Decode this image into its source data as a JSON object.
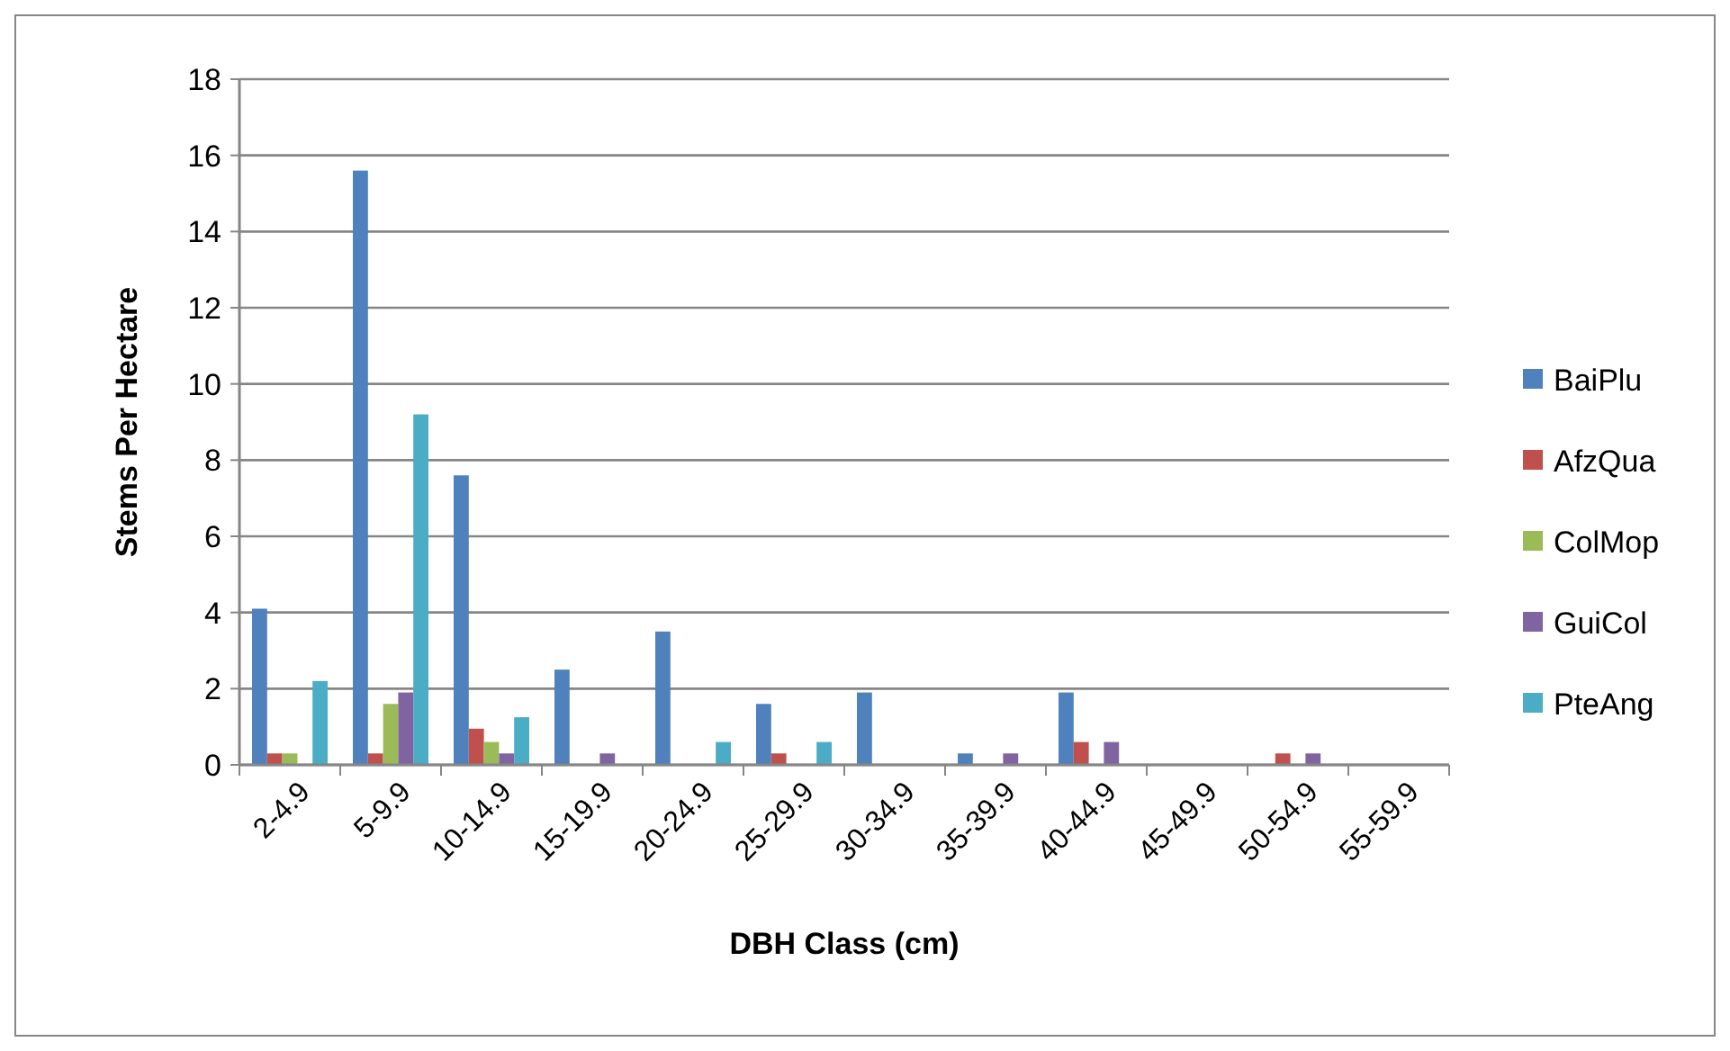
{
  "chart_data": {
    "type": "bar",
    "xlabel": "DBH Class (cm)",
    "ylabel": "Stems Per Hectare",
    "categories": [
      "2-4.9",
      "5-9.9",
      "10-14.9",
      "15-19.9",
      "20-24.9",
      "25-29.9",
      "30-34.9",
      "35-39.9",
      "40-44.9",
      "45-49.9",
      "50-54.9",
      "55-59.9"
    ],
    "series": [
      {
        "name": "BaiPlu",
        "color": "#4f81bd",
        "values": [
          4.1,
          15.6,
          7.6,
          2.5,
          3.5,
          1.6,
          1.9,
          0.3,
          1.9,
          0,
          0,
          0
        ]
      },
      {
        "name": "AfzQua",
        "color": "#c0504d",
        "values": [
          0.3,
          0.3,
          0.95,
          0,
          0,
          0.3,
          0,
          0,
          0.6,
          0,
          0.3,
          0
        ]
      },
      {
        "name": "ColMop",
        "color": "#9bbb59",
        "values": [
          0.3,
          1.6,
          0.6,
          0,
          0,
          0,
          0,
          0,
          0,
          0,
          0,
          0
        ]
      },
      {
        "name": "GuiCol",
        "color": "#8064a2",
        "values": [
          0,
          1.9,
          0.3,
          0.3,
          0,
          0,
          0,
          0.3,
          0.6,
          0,
          0.3,
          0
        ]
      },
      {
        "name": "PteAng",
        "color": "#4bacc6",
        "values": [
          2.2,
          9.2,
          1.25,
          0,
          0.6,
          0.6,
          0,
          0,
          0,
          0,
          0,
          0
        ]
      }
    ],
    "ylim": [
      0,
      18
    ],
    "yticks": [
      0,
      2,
      4,
      6,
      8,
      10,
      12,
      14,
      16,
      18
    ],
    "grid": "y",
    "legend": "right"
  }
}
